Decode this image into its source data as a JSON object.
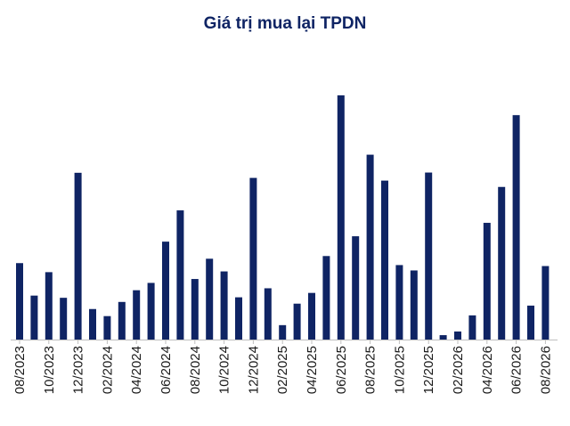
{
  "chart_data": {
    "type": "bar",
    "title": "Giá trị mua lại TPDN",
    "xlabel": "",
    "ylabel": "",
    "categories": [
      "08/2023",
      "09/2023",
      "10/2023",
      "11/2023",
      "12/2023",
      "01/2024",
      "02/2024",
      "03/2024",
      "04/2024",
      "05/2024",
      "06/2024",
      "07/2024",
      "08/2024",
      "09/2024",
      "10/2024",
      "11/2024",
      "12/2024",
      "01/2025",
      "02/2025",
      "03/2025",
      "04/2025",
      "05/2025",
      "06/2025",
      "07/2025",
      "08/2025",
      "09/2025",
      "10/2025",
      "11/2025",
      "12/2025",
      "01/2026",
      "02/2026",
      "03/2026",
      "04/2026",
      "05/2026",
      "06/2026",
      "07/2026",
      "08/2026"
    ],
    "tick_labels": [
      "08/2023",
      "10/2023",
      "12/2023",
      "02/2024",
      "04/2024",
      "06/2024",
      "08/2024",
      "10/2024",
      "12/2024",
      "02/2025",
      "04/2025",
      "06/2025",
      "08/2025",
      "10/2025",
      "12/2025",
      "02/2026",
      "04/2026",
      "06/2026",
      "08/2026"
    ],
    "values": [
      31.3,
      18.0,
      27.6,
      17.1,
      68.3,
      12.5,
      9.6,
      15.4,
      20.2,
      23.2,
      40.1,
      52.9,
      24.8,
      33.1,
      27.9,
      17.3,
      66.2,
      21.0,
      5.9,
      14.7,
      19.1,
      34.2,
      100.0,
      42.3,
      75.7,
      65.1,
      30.5,
      28.3,
      68.4,
      1.8,
      3.3,
      9.9,
      47.8,
      62.5,
      91.9,
      13.9,
      30.1
    ],
    "ylim": [
      0,
      100
    ],
    "color": "#0f2464",
    "grid": false,
    "legend": "none"
  }
}
